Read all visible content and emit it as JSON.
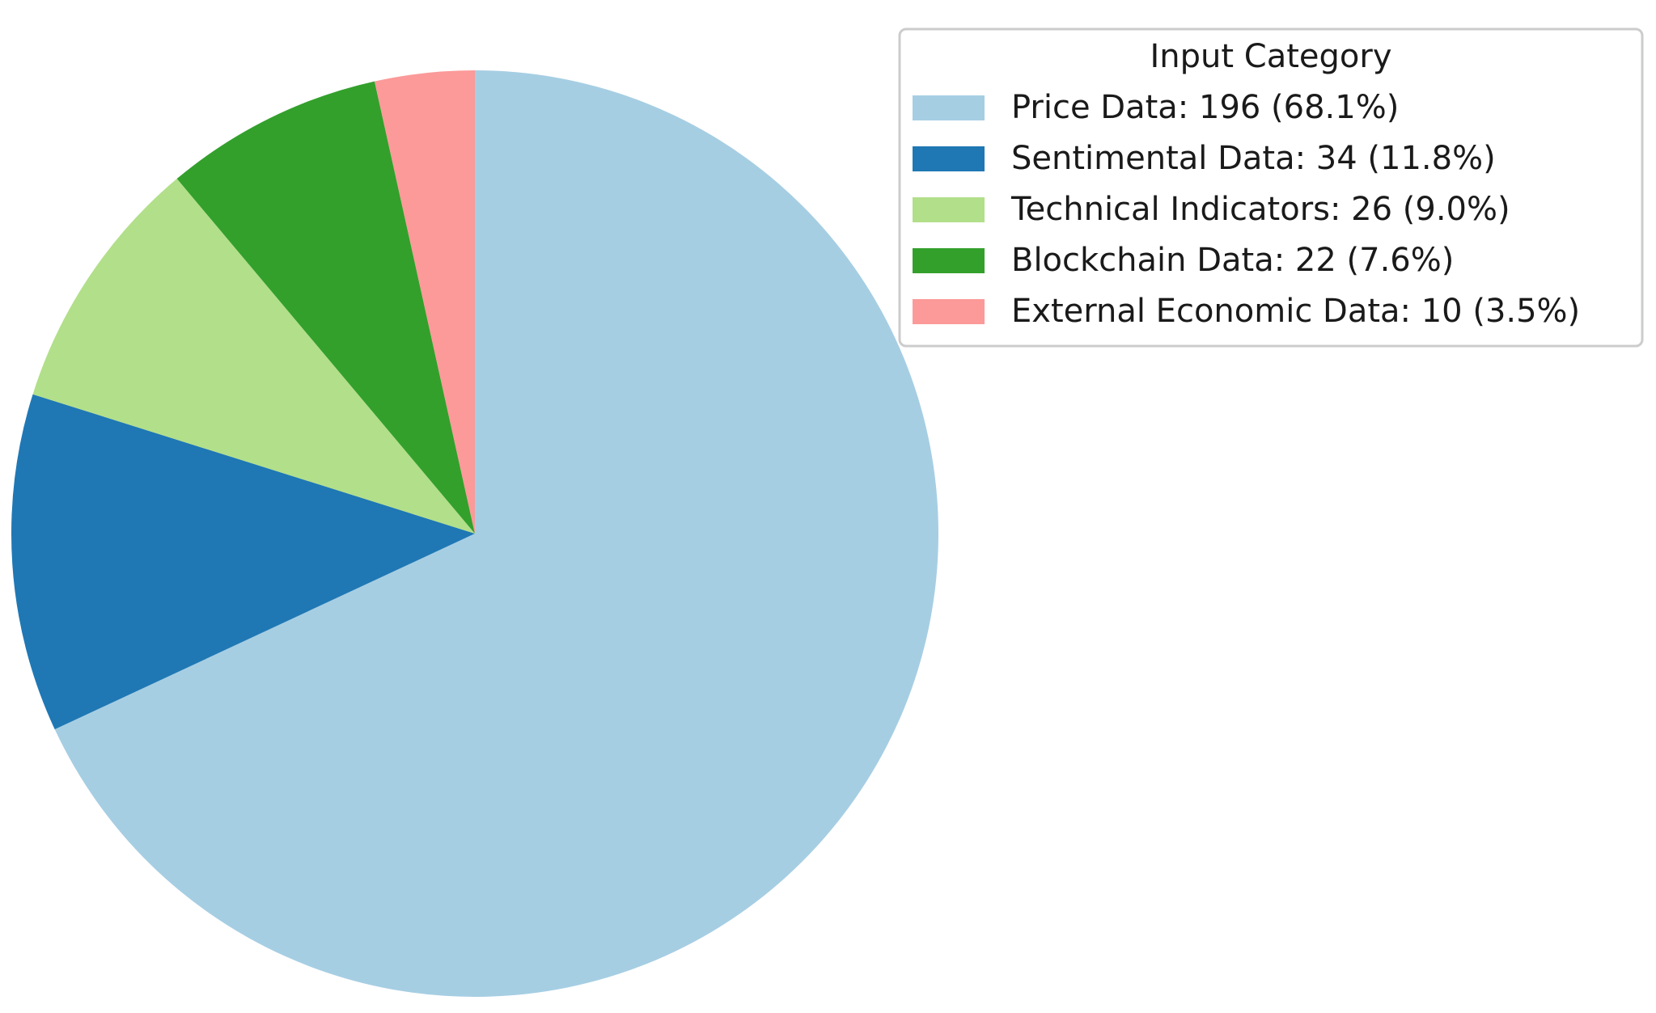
{
  "chart_data": {
    "type": "pie",
    "start_angle_deg": 90,
    "direction": "clockwise",
    "slices": [
      {
        "name": "Price Data",
        "value": 196,
        "percent": 68.1,
        "color": "#a6cee3",
        "legend_label": "Price Data: 196 (68.1%)"
      },
      {
        "name": "Sentimental Data",
        "value": 34,
        "percent": 11.8,
        "color": "#1f78b4",
        "legend_label": "Sentimental Data: 34 (11.8%)"
      },
      {
        "name": "Technical Indicators",
        "value": 26,
        "percent": 9.0,
        "color": "#b2df8a",
        "legend_label": "Technical Indicators: 26 (9.0%)"
      },
      {
        "name": "Blockchain Data",
        "value": 22,
        "percent": 7.6,
        "color": "#33a02c",
        "legend_label": "Blockchain Data: 22 (7.6%)"
      },
      {
        "name": "External Economic Data",
        "value": 10,
        "percent": 3.5,
        "color": "#fb9a99",
        "legend_label": "External Economic Data: 10 (3.5%)"
      }
    ],
    "legend": {
      "title": "Input Category",
      "placement": "top-right"
    }
  }
}
